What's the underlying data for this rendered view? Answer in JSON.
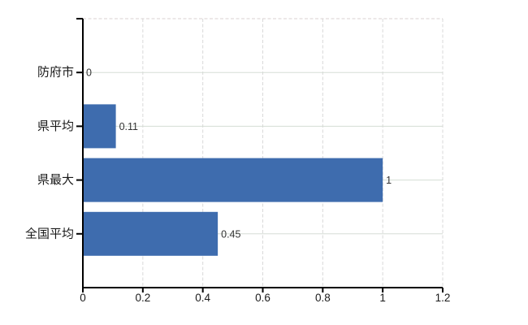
{
  "chart_data": {
    "type": "bar",
    "orientation": "horizontal",
    "title": "",
    "xlabel": "",
    "ylabel": "",
    "legend": "none",
    "categories": [
      "防府市",
      "県平均",
      "県最大",
      "全国平均"
    ],
    "values": [
      0,
      0.11,
      1,
      0.45
    ],
    "data_labels": [
      "0",
      "0.11",
      "1",
      "0.45"
    ],
    "xlim": [
      0,
      1.2
    ],
    "x_ticks": [
      {
        "value": 0,
        "label": "0"
      },
      {
        "value": 0.2,
        "label": "0.2"
      },
      {
        "value": 0.4,
        "label": "0.4"
      },
      {
        "value": 0.6,
        "label": "0.6"
      },
      {
        "value": 0.8,
        "label": "0.8"
      },
      {
        "value": 1,
        "label": "1"
      },
      {
        "value": 1.2,
        "label": "1.2"
      }
    ],
    "grid": {
      "horizontal": "solid",
      "vertical": "dashed"
    },
    "plot_border": {
      "top": "dashed",
      "right": "dashed",
      "bottom": "solid-axis",
      "left": "solid-axis"
    },
    "colors": {
      "bar": "#3e6cae",
      "axis": "#000000",
      "text": "#1a1a1a",
      "data_label_text": "#333333",
      "grid_horizontal": "#d5ddd5",
      "grid_vertical": "#d9d9d9",
      "plot_border": "#d8d2d2",
      "background": "#ffffff"
    }
  }
}
